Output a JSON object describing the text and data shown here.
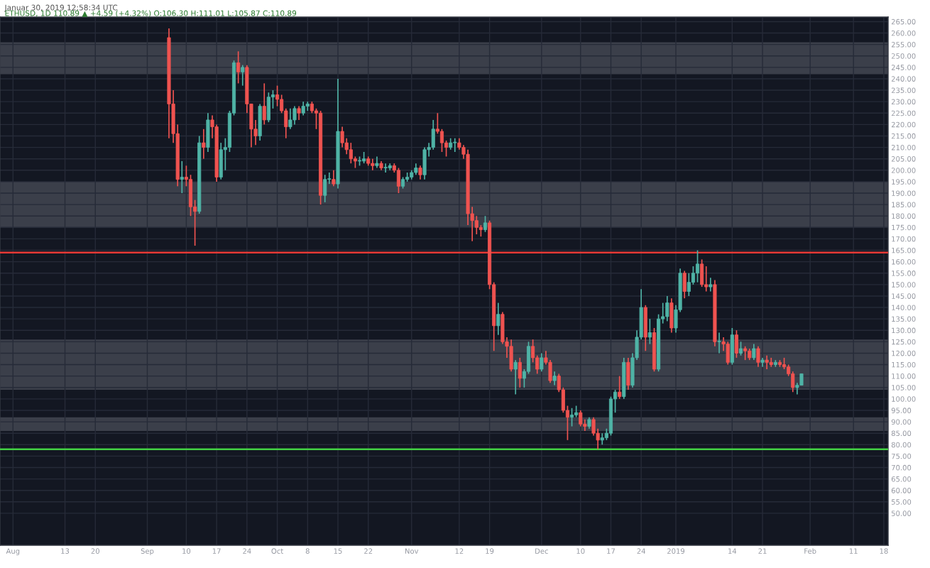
{
  "chart_data": {
    "type": "candlestick",
    "title": "Januar 30, 2019 12:58:34 UTC",
    "subtitle": "ETHUSD, 1D 110.89 ▲ +4.59 (+4.32%) O:106.30 H:111.01 L:105.87 C:110.89",
    "x": [
      "2018-09-06",
      "2018-09-07",
      "2018-09-08",
      "2018-09-09",
      "2018-09-10",
      "2018-09-11",
      "2018-09-12",
      "2018-09-13",
      "2018-09-14",
      "2018-09-15",
      "2018-09-16",
      "2018-09-17",
      "2018-09-18",
      "2018-09-19",
      "2018-09-20",
      "2018-09-21",
      "2018-09-22",
      "2018-09-23",
      "2018-09-24",
      "2018-09-25",
      "2018-09-26",
      "2018-09-27",
      "2018-09-28",
      "2018-09-29",
      "2018-09-30",
      "2018-10-01",
      "2018-10-02",
      "2018-10-03",
      "2018-10-04",
      "2018-10-05",
      "2018-10-06",
      "2018-10-07",
      "2018-10-08",
      "2018-10-09",
      "2018-10-10",
      "2018-10-11",
      "2018-10-12",
      "2018-10-13",
      "2018-10-14",
      "2018-10-15",
      "2018-10-16",
      "2018-10-17",
      "2018-10-18",
      "2018-10-19",
      "2018-10-20",
      "2018-10-21",
      "2018-10-22",
      "2018-10-23",
      "2018-10-24",
      "2018-10-25",
      "2018-10-26",
      "2018-10-27",
      "2018-10-28",
      "2018-10-29",
      "2018-10-30",
      "2018-10-31",
      "2018-11-01",
      "2018-11-02",
      "2018-11-03",
      "2018-11-04",
      "2018-11-05",
      "2018-11-06",
      "2018-11-07",
      "2018-11-08",
      "2018-11-09",
      "2018-11-10",
      "2018-11-11",
      "2018-11-12",
      "2018-11-13",
      "2018-11-14",
      "2018-11-15",
      "2018-11-16",
      "2018-11-17",
      "2018-11-18",
      "2018-11-19",
      "2018-11-20",
      "2018-11-21",
      "2018-11-22",
      "2018-11-23",
      "2018-11-24",
      "2018-11-25",
      "2018-11-26",
      "2018-11-27",
      "2018-11-28",
      "2018-11-29",
      "2018-11-30",
      "2018-12-01",
      "2018-12-02",
      "2018-12-03",
      "2018-12-04",
      "2018-12-05",
      "2018-12-06",
      "2018-12-07",
      "2018-12-08",
      "2018-12-09",
      "2018-12-10",
      "2018-12-11",
      "2018-12-12",
      "2018-12-13",
      "2018-12-14",
      "2018-12-15",
      "2018-12-16",
      "2018-12-17",
      "2018-12-18",
      "2018-12-19",
      "2018-12-20",
      "2018-12-21",
      "2018-12-22",
      "2018-12-23",
      "2018-12-24",
      "2018-12-25",
      "2018-12-26",
      "2018-12-27",
      "2018-12-28",
      "2018-12-29",
      "2018-12-30",
      "2018-12-31",
      "2019-01-01",
      "2019-01-02",
      "2019-01-03",
      "2019-01-04",
      "2019-01-05",
      "2019-01-06",
      "2019-01-07",
      "2019-01-08",
      "2019-01-09",
      "2019-01-10",
      "2019-01-11",
      "2019-01-12",
      "2019-01-13",
      "2019-01-14",
      "2019-01-15",
      "2019-01-16",
      "2019-01-17",
      "2019-01-18",
      "2019-01-19",
      "2019-01-20",
      "2019-01-21",
      "2019-01-22",
      "2019-01-23",
      "2019-01-24",
      "2019-01-25",
      "2019-01-26",
      "2019-01-27",
      "2019-01-28",
      "2019-01-29",
      "2019-01-30"
    ],
    "ohlc": [
      [
        258,
        262,
        214,
        229
      ],
      [
        229,
        235,
        212,
        216
      ],
      [
        216,
        220,
        193,
        196
      ],
      [
        196,
        204,
        190,
        197
      ],
      [
        197,
        202,
        193,
        196
      ],
      [
        196,
        198,
        180,
        184
      ],
      [
        184,
        187,
        167,
        182
      ],
      [
        182,
        215,
        181,
        212
      ],
      [
        212,
        218,
        205,
        210
      ],
      [
        210,
        225,
        208,
        222
      ],
      [
        222,
        224,
        214,
        219
      ],
      [
        219,
        220,
        195,
        197
      ],
      [
        197,
        212,
        196,
        209
      ],
      [
        209,
        214,
        200,
        210
      ],
      [
        210,
        226,
        208,
        225
      ],
      [
        225,
        248,
        224,
        247
      ],
      [
        247,
        252,
        238,
        243
      ],
      [
        243,
        246,
        237,
        245
      ],
      [
        245,
        246,
        225,
        229
      ],
      [
        229,
        229,
        210,
        218
      ],
      [
        218,
        222,
        211,
        215
      ],
      [
        215,
        229,
        213,
        228
      ],
      [
        228,
        238,
        220,
        222
      ],
      [
        222,
        234,
        221,
        232
      ],
      [
        232,
        235,
        227,
        233
      ],
      [
        233,
        237,
        228,
        231
      ],
      [
        231,
        233,
        225,
        226
      ],
      [
        226,
        227,
        214,
        219
      ],
      [
        219,
        227,
        218,
        222
      ],
      [
        222,
        228,
        220,
        227
      ],
      [
        227,
        228,
        222,
        225
      ],
      [
        225,
        230,
        224,
        228
      ],
      [
        228,
        230,
        226,
        229
      ],
      [
        229,
        230,
        225,
        226
      ],
      [
        226,
        227,
        218,
        225
      ],
      [
        225,
        226,
        185,
        189
      ],
      [
        189,
        198,
        186,
        196
      ],
      [
        196,
        199,
        194,
        196
      ],
      [
        196,
        200,
        193,
        194
      ],
      [
        194,
        240,
        192,
        217
      ],
      [
        217,
        219,
        210,
        212
      ],
      [
        212,
        214,
        207,
        209
      ],
      [
        209,
        212,
        203,
        205
      ],
      [
        205,
        206,
        201,
        204
      ],
      [
        204,
        206,
        202,
        204
      ],
      [
        204,
        208,
        203,
        205
      ],
      [
        205,
        206,
        202,
        203
      ],
      [
        203,
        205,
        200,
        202
      ],
      [
        202,
        206,
        201,
        203
      ],
      [
        203,
        204,
        200,
        201
      ],
      [
        201,
        203,
        199,
        201
      ],
      [
        201,
        203,
        200,
        202
      ],
      [
        202,
        203,
        199,
        200
      ],
      [
        200,
        201,
        190,
        193
      ],
      [
        193,
        197,
        192,
        196
      ],
      [
        196,
        199,
        195,
        197
      ],
      [
        197,
        200,
        196,
        199
      ],
      [
        199,
        203,
        198,
        201
      ],
      [
        201,
        202,
        196,
        198
      ],
      [
        198,
        210,
        196,
        209
      ],
      [
        209,
        212,
        206,
        210
      ],
      [
        210,
        222,
        209,
        218
      ],
      [
        218,
        225,
        216,
        217
      ],
      [
        217,
        218,
        208,
        212
      ],
      [
        212,
        213,
        206,
        210
      ],
      [
        210,
        214,
        209,
        212
      ],
      [
        212,
        214,
        208,
        212
      ],
      [
        212,
        214,
        209,
        210
      ],
      [
        210,
        211,
        205,
        207
      ],
      [
        207,
        209,
        176,
        181
      ],
      [
        181,
        184,
        169,
        178
      ],
      [
        178,
        180,
        172,
        175
      ],
      [
        175,
        176,
        171,
        174
      ],
      [
        174,
        180,
        173,
        177
      ],
      [
        177,
        178,
        148,
        150
      ],
      [
        150,
        151,
        121,
        132
      ],
      [
        132,
        142,
        128,
        137
      ],
      [
        137,
        138,
        124,
        125
      ],
      [
        125,
        127,
        118,
        123
      ],
      [
        123,
        126,
        112,
        113
      ],
      [
        113,
        117,
        102,
        116
      ],
      [
        116,
        118,
        105,
        109
      ],
      [
        109,
        113,
        105,
        112
      ],
      [
        112,
        125,
        111,
        123
      ],
      [
        123,
        126,
        116,
        118
      ],
      [
        118,
        119,
        111,
        113
      ],
      [
        113,
        120,
        112,
        118
      ],
      [
        118,
        121,
        115,
        116
      ],
      [
        116,
        117,
        107,
        108
      ],
      [
        108,
        112,
        106,
        110
      ],
      [
        110,
        111,
        103,
        104
      ],
      [
        104,
        105,
        94,
        95
      ],
      [
        95,
        97,
        82,
        92
      ],
      [
        92,
        96,
        88,
        93
      ],
      [
        93,
        97,
        92,
        94
      ],
      [
        94,
        95,
        88,
        89
      ],
      [
        89,
        91,
        86,
        88
      ],
      [
        88,
        92,
        87,
        91
      ],
      [
        91,
        92,
        84,
        85
      ],
      [
        85,
        87,
        78,
        82
      ],
      [
        82,
        85,
        80,
        83
      ],
      [
        83,
        87,
        82,
        85
      ],
      [
        85,
        101,
        84,
        100
      ],
      [
        100,
        104,
        94,
        103
      ],
      [
        103,
        110,
        100,
        101
      ],
      [
        101,
        118,
        100,
        116
      ],
      [
        116,
        118,
        104,
        106
      ],
      [
        106,
        120,
        105,
        118
      ],
      [
        118,
        130,
        117,
        127
      ],
      [
        127,
        148,
        126,
        140
      ],
      [
        140,
        141,
        121,
        127
      ],
      [
        127,
        135,
        124,
        129
      ],
      [
        129,
        131,
        112,
        113
      ],
      [
        113,
        137,
        112,
        135
      ],
      [
        135,
        142,
        133,
        136
      ],
      [
        136,
        145,
        134,
        142
      ],
      [
        142,
        144,
        129,
        131
      ],
      [
        131,
        141,
        129,
        139
      ],
      [
        139,
        157,
        138,
        155
      ],
      [
        155,
        156,
        144,
        147
      ],
      [
        147,
        155,
        145,
        151
      ],
      [
        151,
        158,
        150,
        155
      ],
      [
        155,
        165,
        151,
        159
      ],
      [
        159,
        161,
        149,
        150
      ],
      [
        150,
        158,
        147,
        149
      ],
      [
        149,
        153,
        147,
        150
      ],
      [
        150,
        152,
        123,
        125
      ],
      [
        125,
        129,
        120,
        125
      ],
      [
        125,
        127,
        121,
        124
      ],
      [
        124,
        125,
        115,
        116
      ],
      [
        116,
        131,
        115,
        128
      ],
      [
        128,
        130,
        118,
        120
      ],
      [
        120,
        125,
        119,
        122
      ],
      [
        122,
        123,
        117,
        121
      ],
      [
        121,
        122,
        117,
        118
      ],
      [
        118,
        124,
        117,
        122
      ],
      [
        122,
        123,
        114,
        116
      ],
      [
        116,
        118,
        114,
        117
      ],
      [
        117,
        119,
        113,
        116
      ],
      [
        116,
        118,
        114,
        115
      ],
      [
        115,
        117,
        114,
        116
      ],
      [
        116,
        117,
        114,
        115
      ],
      [
        115,
        118,
        113,
        114
      ],
      [
        114,
        115,
        110,
        111
      ],
      [
        111,
        112,
        103,
        105
      ],
      [
        105,
        107,
        102,
        106
      ],
      [
        106,
        111,
        106,
        111
      ]
    ],
    "xlim": [
      "2018-07-29",
      "2019-02-19"
    ],
    "xticks": [
      {
        "value": "2018-08-01",
        "label": "Aug"
      },
      {
        "value": "2018-08-13",
        "label": "13"
      },
      {
        "value": "2018-08-20",
        "label": "20"
      },
      {
        "value": "2018-09-01",
        "label": "Sep"
      },
      {
        "value": "2018-09-10",
        "label": "10"
      },
      {
        "value": "2018-09-17",
        "label": "17"
      },
      {
        "value": "2018-09-24",
        "label": "24"
      },
      {
        "value": "2018-10-01",
        "label": "Oct"
      },
      {
        "value": "2018-10-08",
        "label": "8"
      },
      {
        "value": "2018-10-15",
        "label": "15"
      },
      {
        "value": "2018-10-22",
        "label": "22"
      },
      {
        "value": "2018-11-01",
        "label": "Nov"
      },
      {
        "value": "2018-11-12",
        "label": "12"
      },
      {
        "value": "2018-11-19",
        "label": "19"
      },
      {
        "value": "2018-12-01",
        "label": "Dec"
      },
      {
        "value": "2018-12-10",
        "label": "10"
      },
      {
        "value": "2018-12-17",
        "label": "17"
      },
      {
        "value": "2018-12-24",
        "label": "24"
      },
      {
        "value": "2019-01-01",
        "label": "2019"
      },
      {
        "value": "2019-01-14",
        "label": "14"
      },
      {
        "value": "2019-01-21",
        "label": "21"
      },
      {
        "value": "2019-02-01",
        "label": "Feb"
      },
      {
        "value": "2019-02-11",
        "label": "11"
      },
      {
        "value": "2019-02-18",
        "label": "18"
      }
    ],
    "ylim": [
      36,
      267
    ],
    "yticks": [
      {
        "value": 50,
        "label": "50.00"
      },
      {
        "value": 55,
        "label": "55.00"
      },
      {
        "value": 60,
        "label": "60.00"
      },
      {
        "value": 65,
        "label": "65.00"
      },
      {
        "value": 70,
        "label": "70.00"
      },
      {
        "value": 75,
        "label": "75.00"
      },
      {
        "value": 80,
        "label": "80.00"
      },
      {
        "value": 85,
        "label": "85.00"
      },
      {
        "value": 90,
        "label": "90.00"
      },
      {
        "value": 95,
        "label": "95.00"
      },
      {
        "value": 100,
        "label": "100.00"
      },
      {
        "value": 105,
        "label": "105.00"
      },
      {
        "value": 110,
        "label": "110.00"
      },
      {
        "value": 115,
        "label": "115.00"
      },
      {
        "value": 120,
        "label": "120.00"
      },
      {
        "value": 125,
        "label": "125.00"
      },
      {
        "value": 130,
        "label": "130.00"
      },
      {
        "value": 135,
        "label": "135.00"
      },
      {
        "value": 140,
        "label": "140.00"
      },
      {
        "value": 145,
        "label": "145.00"
      },
      {
        "value": 150,
        "label": "150.00"
      },
      {
        "value": 155,
        "label": "155.00"
      },
      {
        "value": 160,
        "label": "160.00"
      },
      {
        "value": 165,
        "label": "165.00"
      },
      {
        "value": 170,
        "label": "170.00"
      },
      {
        "value": 175,
        "label": "175.00"
      },
      {
        "value": 180,
        "label": "180.00"
      },
      {
        "value": 185,
        "label": "185.00"
      },
      {
        "value": 190,
        "label": "190.00"
      },
      {
        "value": 195,
        "label": "195.00"
      },
      {
        "value": 200,
        "label": "200.00"
      },
      {
        "value": 205,
        "label": "205.00"
      },
      {
        "value": 210,
        "label": "210.00"
      },
      {
        "value": 215,
        "label": "215.00"
      },
      {
        "value": 220,
        "label": "220.00"
      },
      {
        "value": 225,
        "label": "225.00"
      },
      {
        "value": 230,
        "label": "230.00"
      },
      {
        "value": 235,
        "label": "235.00"
      },
      {
        "value": 240,
        "label": "240.00"
      },
      {
        "value": 245,
        "label": "245.00"
      },
      {
        "value": 250,
        "label": "250.00"
      },
      {
        "value": 255,
        "label": "255.00"
      },
      {
        "value": 260,
        "label": "260.00"
      },
      {
        "value": 265,
        "label": "265.00"
      }
    ],
    "bands": [
      {
        "axis": "y",
        "from": 242,
        "to": 256,
        "color": "#5d606b"
      },
      {
        "axis": "y",
        "from": 175,
        "to": 195,
        "color": "#5d606b"
      },
      {
        "axis": "y",
        "from": 104,
        "to": 126,
        "color": "#5d606b"
      },
      {
        "axis": "y",
        "from": 86,
        "to": 92,
        "color": "#5d606b"
      }
    ],
    "ref_lines": [
      {
        "axis": "y",
        "value": 164,
        "color": "#e53935",
        "line_style": "solid"
      },
      {
        "axis": "y",
        "value": 78,
        "color": "#43d143",
        "line_style": "solid"
      }
    ],
    "grid": true
  }
}
